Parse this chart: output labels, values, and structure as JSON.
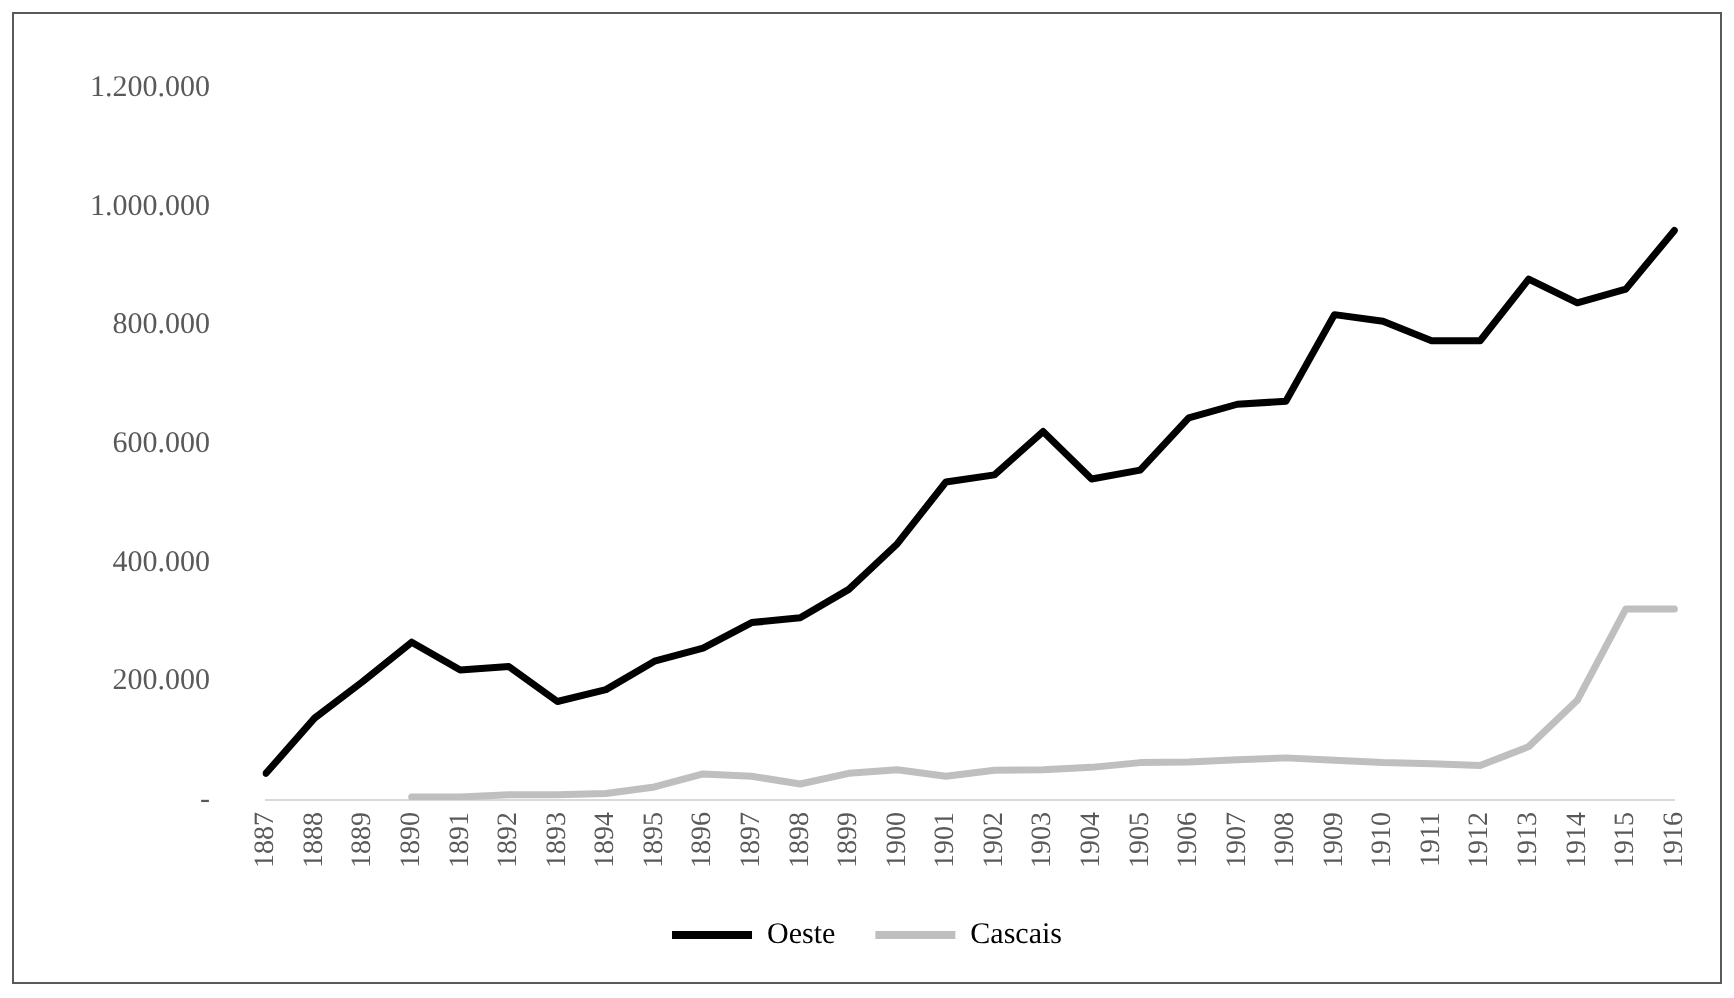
{
  "chart_data": {
    "type": "line",
    "categories": [
      "1887",
      "1888",
      "1889",
      "1890",
      "1891",
      "1892",
      "1893",
      "1894",
      "1895",
      "1896",
      "1897",
      "1898",
      "1899",
      "1900",
      "1901",
      "1902",
      "1903",
      "1904",
      "1905",
      "1906",
      "1907",
      "1908",
      "1909",
      "1910",
      "1911",
      "1912",
      "1913",
      "1914",
      "1915",
      "1916"
    ],
    "series": [
      {
        "name": "Oeste",
        "color": "#000000",
        "values": [
          45000,
          138000,
          200000,
          266000,
          219000,
          225000,
          166000,
          186000,
          234000,
          256000,
          299000,
          307000,
          355000,
          432000,
          536000,
          548000,
          621000,
          541000,
          556000,
          644000,
          667000,
          672000,
          818000,
          807000,
          774000,
          774000,
          878000,
          838000,
          861000,
          960000
        ]
      },
      {
        "name": "Cascais",
        "color": "#bfbfbf",
        "values": [
          null,
          null,
          null,
          5000,
          5000,
          9000,
          9000,
          11000,
          22000,
          44000,
          40000,
          27000,
          45000,
          51000,
          40000,
          50000,
          51000,
          55000,
          63000,
          64000,
          68000,
          71000,
          67000,
          63000,
          61000,
          58000,
          90000,
          168000,
          322000,
          322000
        ]
      }
    ],
    "ylim": [
      0,
      1200000
    ],
    "yticks": [
      {
        "value": 0,
        "label": "-"
      },
      {
        "value": 200000,
        "label": "200.000"
      },
      {
        "value": 400000,
        "label": "400.000"
      },
      {
        "value": 600000,
        "label": "600.000"
      },
      {
        "value": 800000,
        "label": "800.000"
      },
      {
        "value": 1000000,
        "label": "1.000.000"
      },
      {
        "value": 1200000,
        "label": "1.200.000"
      }
    ],
    "grid": false,
    "legend": "bottom",
    "marker": "none",
    "line_style": "solid"
  }
}
